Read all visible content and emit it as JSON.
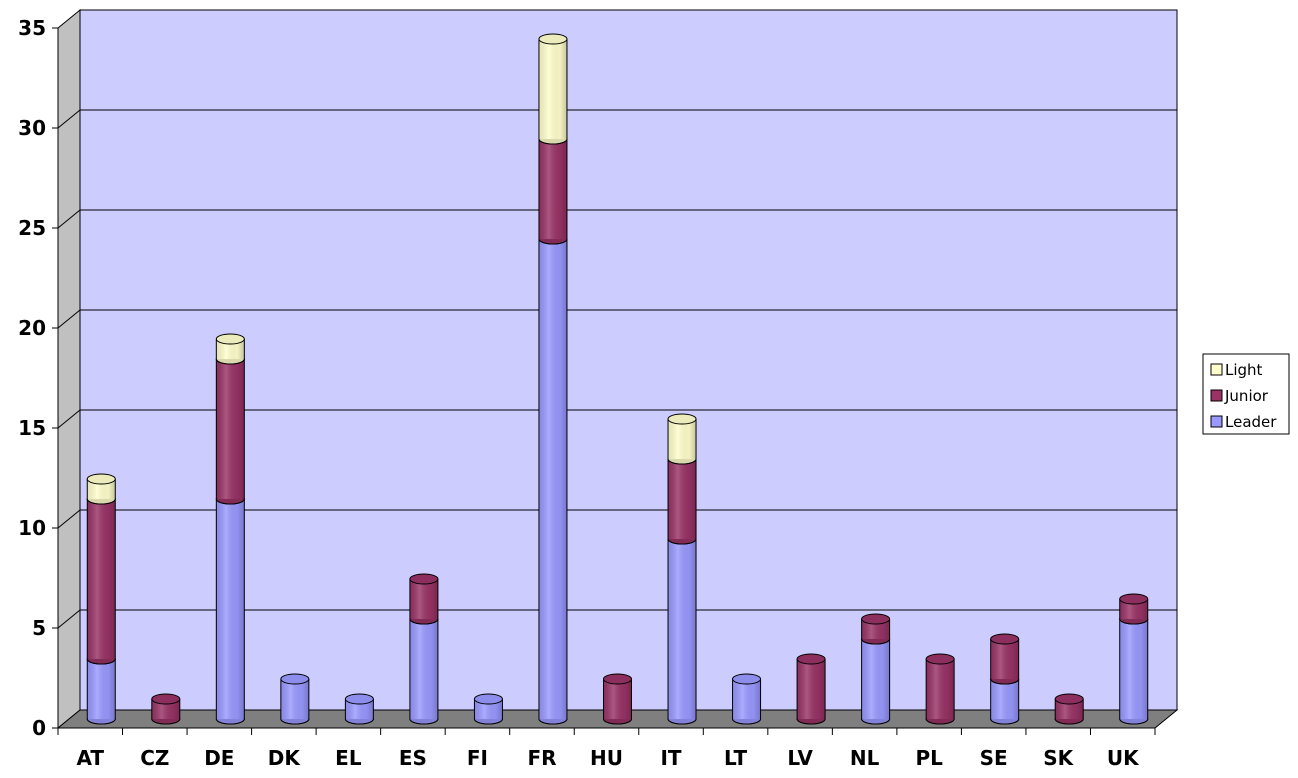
{
  "chart_data": {
    "type": "bar",
    "stacked": true,
    "style": "3d-cylinder",
    "categories": [
      "AT",
      "CZ",
      "DE",
      "DK",
      "EL",
      "ES",
      "FI",
      "FR",
      "HU",
      "IT",
      "LT",
      "LV",
      "NL",
      "PL",
      "SE",
      "SK",
      "UK"
    ],
    "series": [
      {
        "name": "Leader",
        "values": [
          3,
          0,
          11,
          2,
          1,
          5,
          1,
          24,
          0,
          9,
          2,
          0,
          4,
          0,
          2,
          0,
          5
        ]
      },
      {
        "name": "Junior",
        "values": [
          8,
          1,
          7,
          0,
          0,
          2,
          0,
          5,
          2,
          4,
          0,
          3,
          1,
          3,
          2,
          1,
          1
        ]
      },
      {
        "name": "Light",
        "values": [
          1,
          0,
          1,
          0,
          0,
          0,
          0,
          5,
          0,
          2,
          0,
          0,
          0,
          0,
          0,
          0,
          0
        ]
      }
    ],
    "colors": {
      "Leader": "#9999ff",
      "Junior": "#993366",
      "Light": "#ffffcc"
    },
    "y_ticks": [
      "0",
      "5",
      "10",
      "15",
      "20",
      "25",
      "30",
      "35"
    ],
    "ylim": [
      0,
      35
    ],
    "grid": true,
    "legend_position": "right",
    "legend_order": [
      "Light",
      "Junior",
      "Leader"
    ]
  }
}
